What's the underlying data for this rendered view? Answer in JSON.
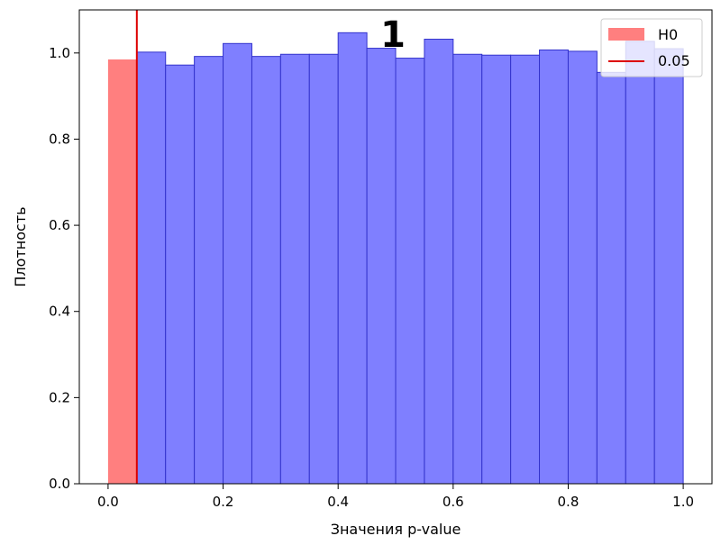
{
  "chart_data": {
    "type": "bar",
    "title": "1",
    "xlabel": "Значения p-value",
    "ylabel": "Плотность",
    "xlim": [
      -0.05,
      1.05
    ],
    "ylim": [
      0,
      1.1
    ],
    "xticks": [
      0.0,
      0.2,
      0.4,
      0.6,
      0.8,
      1.0
    ],
    "xtick_labels": [
      "0.0",
      "0.2",
      "0.4",
      "0.6",
      "0.8",
      "1.0"
    ],
    "yticks": [
      0.0,
      0.2,
      0.4,
      0.6,
      0.8,
      1.0
    ],
    "ytick_labels": [
      "0.0",
      "0.2",
      "0.4",
      "0.6",
      "0.8",
      "1.0"
    ],
    "grid": false,
    "legend_position": "top-right",
    "series": [
      {
        "name": "H0",
        "color": "#ff7f7f",
        "bin_edges": [
          0.0,
          0.05
        ],
        "values": [
          0.985
        ]
      },
      {
        "name": "",
        "color": "#7f7fff",
        "edge_color": "#3333cc",
        "bin_edges": [
          0.05,
          0.1,
          0.15,
          0.2,
          0.25,
          0.3,
          0.35,
          0.4,
          0.45,
          0.5,
          0.55,
          0.6,
          0.65,
          0.7,
          0.75,
          0.8,
          0.85,
          0.9,
          0.95,
          1.0
        ],
        "values": [
          1.002,
          0.972,
          0.992,
          1.022,
          0.992,
          0.997,
          0.997,
          1.047,
          1.011,
          0.988,
          1.032,
          0.997,
          0.995,
          0.995,
          1.007,
          1.004,
          0.955,
          1.027,
          1.01
        ]
      }
    ],
    "threshold_line": {
      "name": "0.05",
      "x": 0.05,
      "color": "#dd0000"
    },
    "legend": [
      {
        "label": "H0",
        "kind": "patch",
        "color": "#ff7f7f"
      },
      {
        "label": "0.05",
        "kind": "line",
        "color": "#dd0000"
      }
    ]
  }
}
